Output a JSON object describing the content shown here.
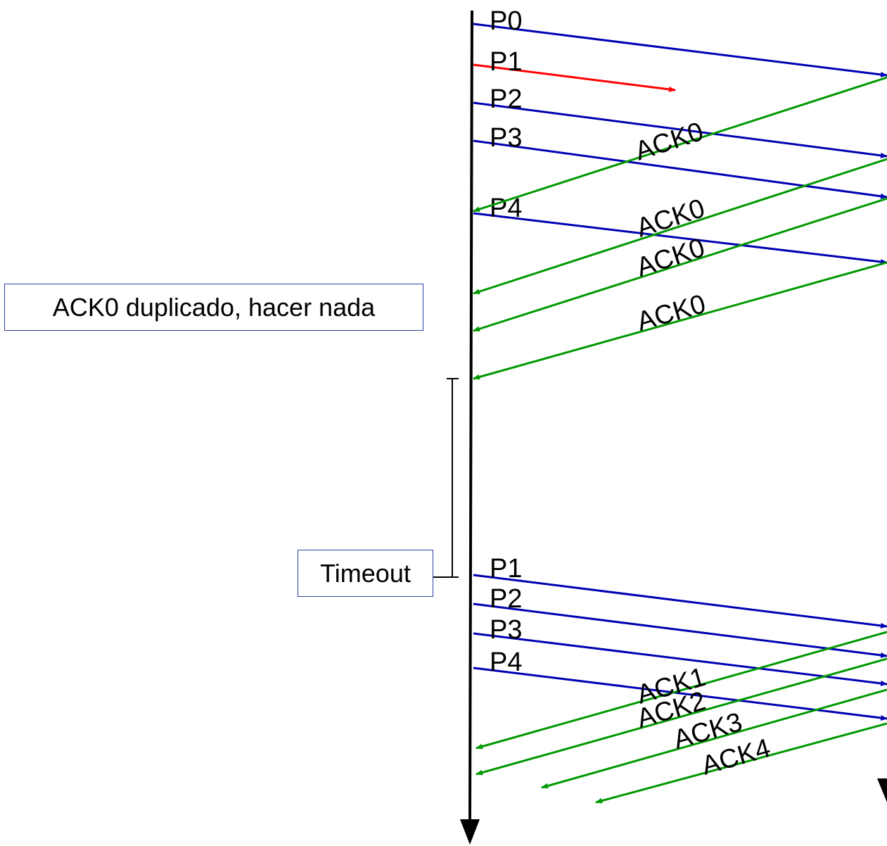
{
  "colors": {
    "data_packet": "#0000b3",
    "lost_packet": "#ff0000",
    "ack": "#009900",
    "timeline": "#000000",
    "note_border": "#2b3d9e"
  },
  "notes": {
    "duplicate_ack": "ACK0 duplicado, hacer nada",
    "timeout": "Timeout"
  },
  "first_round": {
    "packets": [
      {
        "label": "P0",
        "status": "delivered"
      },
      {
        "label": "P1",
        "status": "lost"
      },
      {
        "label": "P2",
        "status": "delivered"
      },
      {
        "label": "P3",
        "status": "delivered"
      },
      {
        "label": "P4",
        "status": "delivered"
      }
    ],
    "acks": [
      {
        "label": "ACK0"
      },
      {
        "label": "ACK0"
      },
      {
        "label": "ACK0"
      },
      {
        "label": "ACK0"
      }
    ]
  },
  "retransmission": {
    "packets": [
      {
        "label": "P1"
      },
      {
        "label": "P2"
      },
      {
        "label": "P3"
      },
      {
        "label": "P4"
      }
    ],
    "acks": [
      {
        "label": "ACK1"
      },
      {
        "label": "ACK2"
      },
      {
        "label": "ACK3"
      },
      {
        "label": "ACK4"
      }
    ]
  }
}
